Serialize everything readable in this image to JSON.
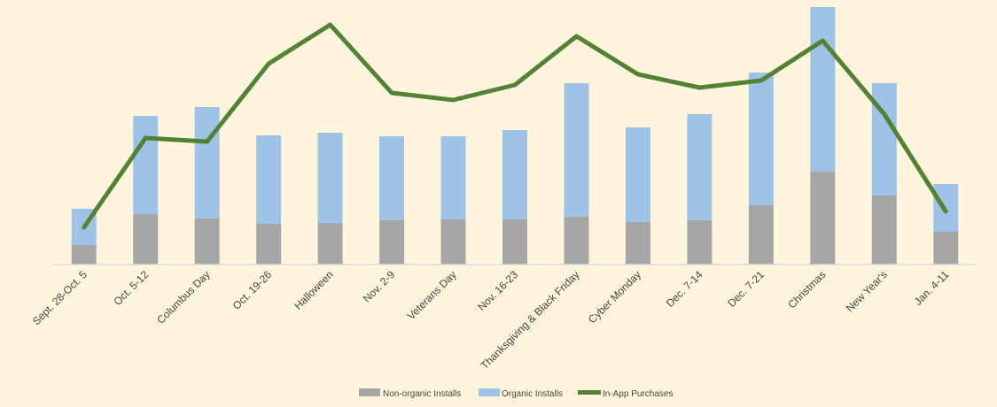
{
  "chart_data": {
    "type": "bar",
    "stacked": true,
    "categories": [
      "Sept. 28-Oct. 5",
      "Oct. 5-12",
      "Columbus Day",
      "Oct. 19-26",
      "Halloween",
      "Nov. 2-9",
      "Veterans Day",
      "Nov. 16-23",
      "Thanksgiving & Black Friday",
      "Cyber Monday",
      "Dec. 7-14",
      "Dec. 7-21",
      "Christmas",
      "New Year's",
      "Jan. 4-11"
    ],
    "series": [
      {
        "name": "Non-organic Installs",
        "type": "bar",
        "color": "#a6a6a6",
        "values": [
          22,
          57,
          52,
          46,
          47,
          50,
          51,
          51,
          54,
          48,
          50,
          67,
          105,
          78,
          37
        ]
      },
      {
        "name": "Organic Installs",
        "type": "bar",
        "color": "#9dc3e6",
        "values": [
          41,
          111,
          126,
          100,
          102,
          95,
          94,
          101,
          151,
          107,
          120,
          150,
          186,
          127,
          54
        ]
      },
      {
        "name": "In-App Purchases",
        "type": "line",
        "color": "#548235",
        "values": [
          42,
          143,
          139,
          227,
          271,
          194,
          186,
          203,
          258,
          215,
          200,
          208,
          253,
          170,
          60
        ]
      }
    ],
    "ylim": [
      0,
      291
    ],
    "grid": false,
    "legend_position": "bottom"
  }
}
